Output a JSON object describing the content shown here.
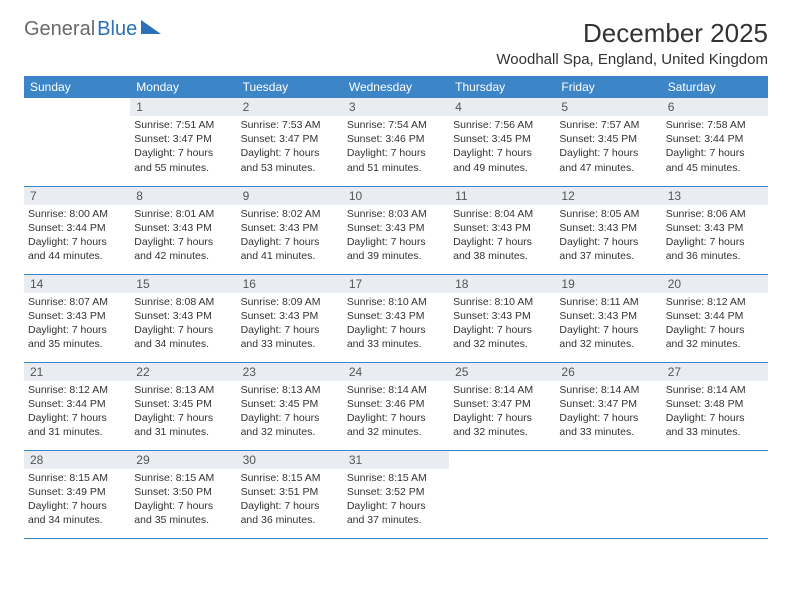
{
  "logo": {
    "part1": "General",
    "part2": "Blue"
  },
  "title": "December 2025",
  "location": "Woodhall Spa, England, United Kingdom",
  "colors": {
    "header_bg": "#3c85c6",
    "header_text": "#ffffff",
    "daynum_bg": "#e9edf1",
    "row_border": "#3c85c6",
    "logo_gray": "#6a6a6a",
    "logo_blue": "#2a71b8"
  },
  "dayNames": [
    "Sunday",
    "Monday",
    "Tuesday",
    "Wednesday",
    "Thursday",
    "Friday",
    "Saturday"
  ],
  "weeks": [
    [
      null,
      {
        "n": "1",
        "sr": "7:51 AM",
        "ss": "3:47 PM",
        "dl": "7 hours and 55 minutes."
      },
      {
        "n": "2",
        "sr": "7:53 AM",
        "ss": "3:47 PM",
        "dl": "7 hours and 53 minutes."
      },
      {
        "n": "3",
        "sr": "7:54 AM",
        "ss": "3:46 PM",
        "dl": "7 hours and 51 minutes."
      },
      {
        "n": "4",
        "sr": "7:56 AM",
        "ss": "3:45 PM",
        "dl": "7 hours and 49 minutes."
      },
      {
        "n": "5",
        "sr": "7:57 AM",
        "ss": "3:45 PM",
        "dl": "7 hours and 47 minutes."
      },
      {
        "n": "6",
        "sr": "7:58 AM",
        "ss": "3:44 PM",
        "dl": "7 hours and 45 minutes."
      }
    ],
    [
      {
        "n": "7",
        "sr": "8:00 AM",
        "ss": "3:44 PM",
        "dl": "7 hours and 44 minutes."
      },
      {
        "n": "8",
        "sr": "8:01 AM",
        "ss": "3:43 PM",
        "dl": "7 hours and 42 minutes."
      },
      {
        "n": "9",
        "sr": "8:02 AM",
        "ss": "3:43 PM",
        "dl": "7 hours and 41 minutes."
      },
      {
        "n": "10",
        "sr": "8:03 AM",
        "ss": "3:43 PM",
        "dl": "7 hours and 39 minutes."
      },
      {
        "n": "11",
        "sr": "8:04 AM",
        "ss": "3:43 PM",
        "dl": "7 hours and 38 minutes."
      },
      {
        "n": "12",
        "sr": "8:05 AM",
        "ss": "3:43 PM",
        "dl": "7 hours and 37 minutes."
      },
      {
        "n": "13",
        "sr": "8:06 AM",
        "ss": "3:43 PM",
        "dl": "7 hours and 36 minutes."
      }
    ],
    [
      {
        "n": "14",
        "sr": "8:07 AM",
        "ss": "3:43 PM",
        "dl": "7 hours and 35 minutes."
      },
      {
        "n": "15",
        "sr": "8:08 AM",
        "ss": "3:43 PM",
        "dl": "7 hours and 34 minutes."
      },
      {
        "n": "16",
        "sr": "8:09 AM",
        "ss": "3:43 PM",
        "dl": "7 hours and 33 minutes."
      },
      {
        "n": "17",
        "sr": "8:10 AM",
        "ss": "3:43 PM",
        "dl": "7 hours and 33 minutes."
      },
      {
        "n": "18",
        "sr": "8:10 AM",
        "ss": "3:43 PM",
        "dl": "7 hours and 32 minutes."
      },
      {
        "n": "19",
        "sr": "8:11 AM",
        "ss": "3:43 PM",
        "dl": "7 hours and 32 minutes."
      },
      {
        "n": "20",
        "sr": "8:12 AM",
        "ss": "3:44 PM",
        "dl": "7 hours and 32 minutes."
      }
    ],
    [
      {
        "n": "21",
        "sr": "8:12 AM",
        "ss": "3:44 PM",
        "dl": "7 hours and 31 minutes."
      },
      {
        "n": "22",
        "sr": "8:13 AM",
        "ss": "3:45 PM",
        "dl": "7 hours and 31 minutes."
      },
      {
        "n": "23",
        "sr": "8:13 AM",
        "ss": "3:45 PM",
        "dl": "7 hours and 32 minutes."
      },
      {
        "n": "24",
        "sr": "8:14 AM",
        "ss": "3:46 PM",
        "dl": "7 hours and 32 minutes."
      },
      {
        "n": "25",
        "sr": "8:14 AM",
        "ss": "3:47 PM",
        "dl": "7 hours and 32 minutes."
      },
      {
        "n": "26",
        "sr": "8:14 AM",
        "ss": "3:47 PM",
        "dl": "7 hours and 33 minutes."
      },
      {
        "n": "27",
        "sr": "8:14 AM",
        "ss": "3:48 PM",
        "dl": "7 hours and 33 minutes."
      }
    ],
    [
      {
        "n": "28",
        "sr": "8:15 AM",
        "ss": "3:49 PM",
        "dl": "7 hours and 34 minutes."
      },
      {
        "n": "29",
        "sr": "8:15 AM",
        "ss": "3:50 PM",
        "dl": "7 hours and 35 minutes."
      },
      {
        "n": "30",
        "sr": "8:15 AM",
        "ss": "3:51 PM",
        "dl": "7 hours and 36 minutes."
      },
      {
        "n": "31",
        "sr": "8:15 AM",
        "ss": "3:52 PM",
        "dl": "7 hours and 37 minutes."
      },
      null,
      null,
      null
    ]
  ],
  "labels": {
    "sunrise": "Sunrise:",
    "sunset": "Sunset:",
    "daylight": "Daylight:"
  }
}
